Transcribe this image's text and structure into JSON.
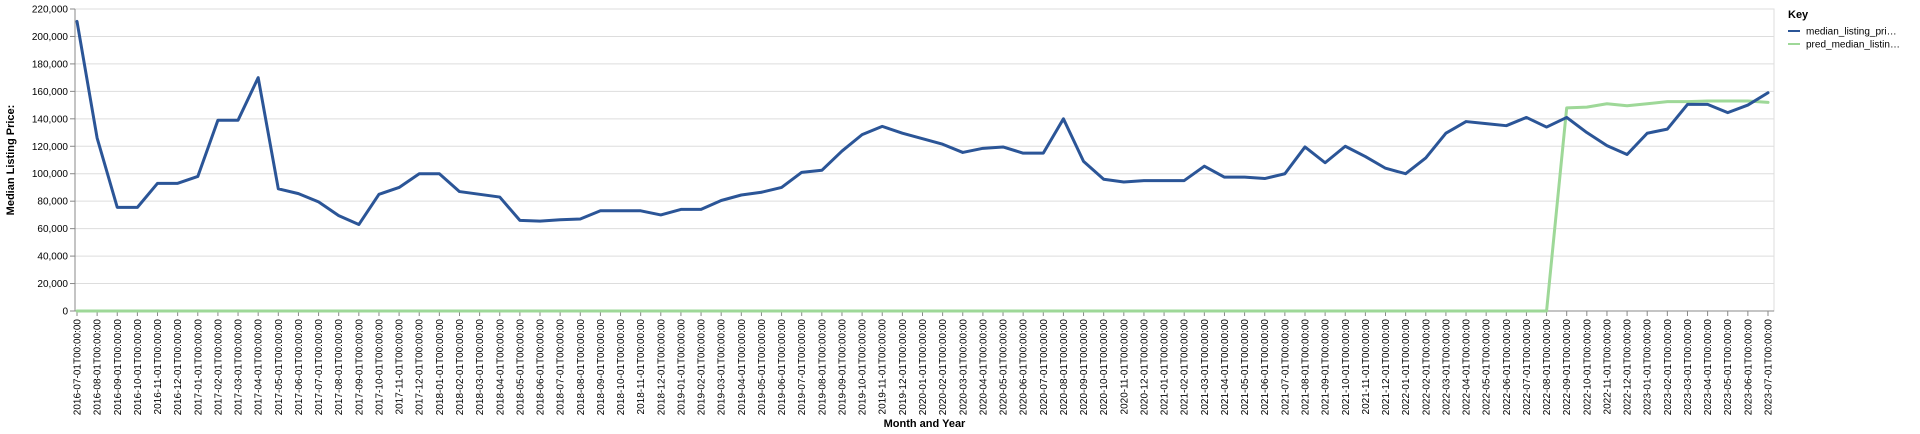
{
  "chart_data": {
    "type": "line",
    "xlabel": "Month and Year",
    "ylabel": "Median Listing Price:",
    "ylim": [
      0,
      220000
    ],
    "yticks": [
      0,
      20000,
      40000,
      60000,
      80000,
      100000,
      120000,
      140000,
      160000,
      180000,
      200000,
      220000
    ],
    "ytick_labels": [
      "0",
      "20,000",
      "40,000",
      "60,000",
      "80,000",
      "100,000",
      "120,000",
      "140,000",
      "160,000",
      "180,000",
      "200,000",
      "220,000"
    ],
    "grid": true,
    "legend": {
      "title": "Key",
      "placement": "top-right",
      "entries": [
        "median_listing_pri…",
        "pred_median_listin…"
      ]
    },
    "categories": [
      "2016-07-01T00:00:00",
      "2016-08-01T00:00:00",
      "2016-09-01T00:00:00",
      "2016-10-01T00:00:00",
      "2016-11-01T00:00:00",
      "2016-12-01T00:00:00",
      "2017-01-01T00:00:00",
      "2017-02-01T00:00:00",
      "2017-03-01T00:00:00",
      "2017-04-01T00:00:00",
      "2017-05-01T00:00:00",
      "2017-06-01T00:00:00",
      "2017-07-01T00:00:00",
      "2017-08-01T00:00:00",
      "2017-09-01T00:00:00",
      "2017-10-01T00:00:00",
      "2017-11-01T00:00:00",
      "2017-12-01T00:00:00",
      "2018-01-01T00:00:00",
      "2018-02-01T00:00:00",
      "2018-03-01T00:00:00",
      "2018-04-01T00:00:00",
      "2018-05-01T00:00:00",
      "2018-06-01T00:00:00",
      "2018-07-01T00:00:00",
      "2018-08-01T00:00:00",
      "2018-09-01T00:00:00",
      "2018-10-01T00:00:00",
      "2018-11-01T00:00:00",
      "2018-12-01T00:00:00",
      "2019-01-01T00:00:00",
      "2019-02-01T00:00:00",
      "2019-03-01T00:00:00",
      "2019-04-01T00:00:00",
      "2019-05-01T00:00:00",
      "2019-06-01T00:00:00",
      "2019-07-01T00:00:00",
      "2019-08-01T00:00:00",
      "2019-09-01T00:00:00",
      "2019-10-01T00:00:00",
      "2019-11-01T00:00:00",
      "2019-12-01T00:00:00",
      "2020-01-01T00:00:00",
      "2020-02-01T00:00:00",
      "2020-03-01T00:00:00",
      "2020-04-01T00:00:00",
      "2020-05-01T00:00:00",
      "2020-06-01T00:00:00",
      "2020-07-01T00:00:00",
      "2020-08-01T00:00:00",
      "2020-09-01T00:00:00",
      "2020-10-01T00:00:00",
      "2020-11-01T00:00:00",
      "2020-12-01T00:00:00",
      "2021-01-01T00:00:00",
      "2021-02-01T00:00:00",
      "2021-03-01T00:00:00",
      "2021-04-01T00:00:00",
      "2021-05-01T00:00:00",
      "2021-06-01T00:00:00",
      "2021-07-01T00:00:00",
      "2021-08-01T00:00:00",
      "2021-09-01T00:00:00",
      "2021-10-01T00:00:00",
      "2021-11-01T00:00:00",
      "2021-12-01T00:00:00",
      "2022-01-01T00:00:00",
      "2022-02-01T00:00:00",
      "2022-03-01T00:00:00",
      "2022-04-01T00:00:00",
      "2022-05-01T00:00:00",
      "2022-06-01T00:00:00",
      "2022-07-01T00:00:00",
      "2022-08-01T00:00:00",
      "2022-09-01T00:00:00",
      "2022-10-01T00:00:00",
      "2022-11-01T00:00:00",
      "2022-12-01T00:00:00",
      "2023-01-01T00:00:00",
      "2023-02-01T00:00:00",
      "2023-03-01T00:00:00",
      "2023-04-01T00:00:00",
      "2023-05-01T00:00:00",
      "2023-06-01T00:00:00",
      "2023-07-01T00:00:00"
    ],
    "series": [
      {
        "name": "median_listing_pri…",
        "color": "#2b5597",
        "values": [
          211000,
          126000,
          75500,
          75500,
          93000,
          93000,
          98000,
          139000,
          139000,
          170000,
          89000,
          85500,
          79500,
          69500,
          63000,
          85000,
          90000,
          100000,
          100000,
          87000,
          85000,
          83000,
          66000,
          65500,
          66500,
          67000,
          73000,
          73000,
          73000,
          70000,
          74000,
          74000,
          80500,
          84500,
          86500,
          90000,
          101000,
          102500,
          116500,
          128500,
          134500,
          129500,
          125500,
          121500,
          115500,
          118500,
          119500,
          115000,
          115000,
          140000,
          109000,
          96000,
          94000,
          95000,
          95000,
          95000,
          105500,
          97500,
          97500,
          96500,
          100000,
          119500,
          108000,
          120000,
          112500,
          104000,
          100000,
          111500,
          129500,
          138000,
          136500,
          135000,
          141000,
          134000,
          141000,
          130000,
          120500,
          114000,
          129500,
          132500,
          150500,
          150500,
          144500,
          150000,
          159000
        ]
      },
      {
        "name": "pred_median_listin…",
        "color": "#9ed898",
        "values": [
          0,
          0,
          0,
          0,
          0,
          0,
          0,
          0,
          0,
          0,
          0,
          0,
          0,
          0,
          0,
          0,
          0,
          0,
          0,
          0,
          0,
          0,
          0,
          0,
          0,
          0,
          0,
          0,
          0,
          0,
          0,
          0,
          0,
          0,
          0,
          0,
          0,
          0,
          0,
          0,
          0,
          0,
          0,
          0,
          0,
          0,
          0,
          0,
          0,
          0,
          0,
          0,
          0,
          0,
          0,
          0,
          0,
          0,
          0,
          0,
          0,
          0,
          0,
          0,
          0,
          0,
          0,
          0,
          0,
          0,
          0,
          0,
          0,
          0,
          148000,
          148500,
          151000,
          149500,
          151000,
          152500,
          152500,
          153000,
          153000,
          153000,
          152000
        ]
      }
    ]
  }
}
